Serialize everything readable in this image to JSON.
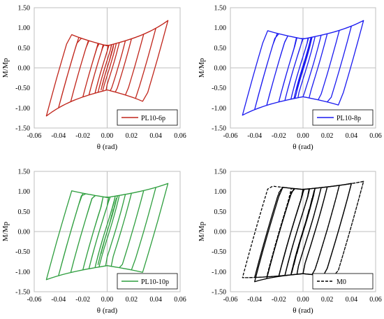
{
  "chart_data": [
    {
      "type": "line",
      "xlabel": "θ (rad)",
      "ylabel": "M/Mp",
      "xlim": [
        -0.06,
        0.06
      ],
      "ylim": [
        -1.5,
        1.5
      ],
      "x_ticks": [
        "-0.06",
        "-0.04",
        "-0.02",
        "0.00",
        "0.02",
        "0.04",
        "0.06"
      ],
      "y_ticks": [
        "1.50",
        "1.00",
        "0.50",
        "0.00",
        "-0.50",
        "-1.00",
        "-1.50"
      ],
      "grid": "zero-lines",
      "legend_position": "bottom-right",
      "series": [
        {
          "name": "PL10-6p",
          "color": "#c0251b",
          "dash": "solid",
          "amplitudes": [
            0.00375,
            0.005,
            0.0075,
            0.01,
            0.015,
            0.02,
            0.03,
            0.04,
            0.05
          ],
          "cycles_per_amplitude": 2,
          "elastic_slope": 110,
          "plateau_moment": 0.55,
          "hardening_slope": 8,
          "peak_moment_at_max": 1.18,
          "min_moment_at_max": -1.2
        }
      ]
    },
    {
      "type": "line",
      "xlabel": "θ (rad)",
      "ylabel": "M/Mp",
      "xlim": [
        -0.06,
        0.06
      ],
      "ylim": [
        -1.5,
        1.5
      ],
      "x_ticks": [
        "-0.06",
        "-0.04",
        "-0.02",
        "0.00",
        "0.02",
        "0.04",
        "0.06"
      ],
      "y_ticks": [
        "1.50",
        "1.00",
        "0.50",
        "0.00",
        "-0.50",
        "-1.00",
        "-1.50"
      ],
      "grid": "zero-lines",
      "legend_position": "bottom-right",
      "series": [
        {
          "name": "PL10-8p",
          "color": "#1a1af0",
          "dash": "solid",
          "amplitudes": [
            0.00375,
            0.005,
            0.0075,
            0.01,
            0.015,
            0.02,
            0.03,
            0.04,
            0.05
          ],
          "cycles_per_amplitude": 2,
          "elastic_slope": 110,
          "plateau_moment": 0.72,
          "hardening_slope": 6,
          "peak_moment_at_max": 1.18,
          "min_moment_at_max": -1.18
        }
      ]
    },
    {
      "type": "line",
      "xlabel": "θ (rad)",
      "ylabel": "M/Mp",
      "xlim": [
        -0.06,
        0.06
      ],
      "ylim": [
        -1.5,
        1.5
      ],
      "x_ticks": [
        "-0.06",
        "-0.04",
        "-0.02",
        "0.00",
        "0.02",
        "0.04",
        "0.06"
      ],
      "y_ticks": [
        "1.50",
        "1.00",
        "0.50",
        "0.00",
        "-0.50",
        "-1.00",
        "-1.50"
      ],
      "grid": "zero-lines",
      "legend_position": "bottom-right",
      "series": [
        {
          "name": "PL10-10p",
          "color": "#2e9e3e",
          "dash": "solid",
          "amplitudes": [
            0.00375,
            0.005,
            0.0075,
            0.01,
            0.015,
            0.02,
            0.03,
            0.04,
            0.05
          ],
          "cycles_per_amplitude": 2,
          "elastic_slope": 110,
          "plateau_moment": 0.85,
          "hardening_slope": 5,
          "peak_moment_at_max": 1.2,
          "min_moment_at_max": -1.2
        }
      ]
    },
    {
      "type": "line",
      "xlabel": "θ (rad)",
      "ylabel": "M/Mp",
      "xlim": [
        -0.06,
        0.06
      ],
      "ylim": [
        -1.5,
        1.5
      ],
      "x_ticks": [
        "-0.06",
        "-0.04",
        "-0.02",
        "0.00",
        "0.02",
        "0.04",
        "0.06"
      ],
      "y_ticks": [
        "1.50",
        "1.00",
        "0.50",
        "0.00",
        "-0.50",
        "-1.00",
        "-1.50"
      ],
      "grid": "zero-lines",
      "legend_position": "bottom-right",
      "series": [
        {
          "name": "M0",
          "color": "#000000",
          "dash": "dashed",
          "amplitudes": [
            0.00375,
            0.005,
            0.0075,
            0.01,
            0.015,
            0.02,
            0.03,
            0.04,
            0.05
          ],
          "cycles_per_amplitude": 2,
          "elastic_slope": 110,
          "plateau_moment": 1.05,
          "hardening_slope": 3,
          "peak_moment_at_max": 1.25,
          "min_moment_at_max": -1.15
        },
        {
          "color": "#000000",
          "dash": "solid",
          "amplitudes": [
            0.00375,
            0.005,
            0.0075,
            0.01,
            0.015,
            0.02,
            0.03,
            0.04
          ],
          "cycles_per_amplitude": 2,
          "elastic_slope": 110,
          "plateau_moment": 1.05,
          "hardening_slope": 3,
          "peak_moment_at_max": 1.2,
          "min_moment_at_max": -1.25
        }
      ]
    }
  ]
}
